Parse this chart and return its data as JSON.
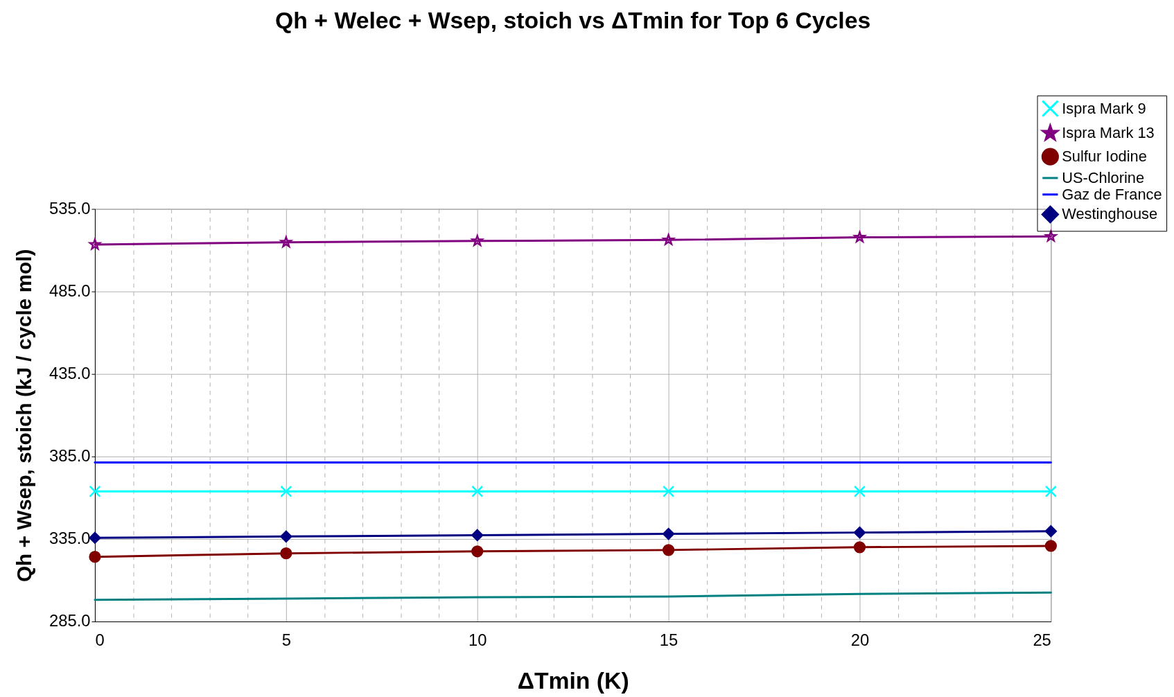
{
  "chart_data": {
    "type": "line",
    "title": "Qh + Welec + Wsep, stoich vs ΔTmin for Top 6 Cycles",
    "xlabel": "ΔTmin (K)",
    "ylabel": "Qh + Wsep, stoich (kJ / cycle mol)",
    "x": [
      0,
      5,
      10,
      15,
      20,
      25
    ],
    "xlim": [
      0,
      25
    ],
    "xticks": [
      0,
      {
        "value": 1,
        "label": null
      },
      {
        "value": 2,
        "label": null
      },
      {
        "value": 3,
        "label": null
      },
      {
        "value": 4,
        "label": null
      },
      5,
      {
        "value": 6,
        "label": null
      },
      {
        "value": 7,
        "label": null
      },
      {
        "value": 8,
        "label": null
      },
      {
        "value": 9,
        "label": null
      },
      10,
      {
        "value": 11,
        "label": null
      },
      {
        "value": 12,
        "label": null
      },
      {
        "value": 13,
        "label": null
      },
      {
        "value": 14,
        "label": null
      },
      15,
      {
        "value": 16,
        "label": null
      },
      {
        "value": 17,
        "label": null
      },
      {
        "value": 18,
        "label": null
      },
      {
        "value": 19,
        "label": null
      },
      20,
      {
        "value": 21,
        "label": null
      },
      {
        "value": 22,
        "label": null
      },
      {
        "value": 23,
        "label": null
      },
      {
        "value": 24,
        "label": null
      },
      25
    ],
    "ylim": [
      285,
      535
    ],
    "yticks": [
      {
        "value": 285,
        "label": "285.0"
      },
      {
        "value": 335,
        "label": "335.0"
      },
      {
        "value": 385,
        "label": "385.0"
      },
      {
        "value": 435,
        "label": "435.0"
      },
      {
        "value": 485,
        "label": "485.0"
      },
      {
        "value": 535,
        "label": "535.0"
      }
    ],
    "grid": true,
    "legend": "top right",
    "series": [
      {
        "name": "Ispra Mark 9",
        "color": "#00ffff",
        "marker": "cross",
        "values": [
          363.8,
          363.8,
          363.8,
          363.8,
          363.8,
          363.8
        ]
      },
      {
        "name": "Ispra Mark 13",
        "color": "#800080",
        "marker": "star",
        "values": [
          513.4,
          514.8,
          515.6,
          516.2,
          517.8,
          518.3
        ]
      },
      {
        "name": "Sulfur Iodine",
        "color": "#800000",
        "marker": "circle",
        "values": [
          324.2,
          326.3,
          327.5,
          328.3,
          330.0,
          330.8
        ]
      },
      {
        "name": "US-Chlorine",
        "color": "#008080",
        "marker": "none",
        "values": [
          298.1,
          298.9,
          299.7,
          300.1,
          301.7,
          302.5
        ]
      },
      {
        "name": "Gaz de France",
        "color": "#0000ff",
        "marker": "none",
        "values": [
          381.4,
          381.4,
          381.4,
          381.4,
          381.4,
          381.4
        ]
      },
      {
        "name": "Westinghouse",
        "color": "#000080",
        "marker": "diamond",
        "values": [
          335.7,
          336.5,
          337.3,
          338.1,
          338.9,
          339.7
        ]
      }
    ]
  }
}
